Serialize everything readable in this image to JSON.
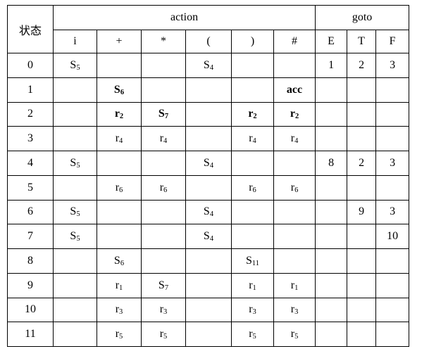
{
  "table": {
    "corner_header": "状态",
    "group_headers": {
      "action": "action",
      "goto": "goto"
    },
    "action_columns": [
      "i",
      "+",
      "*",
      "(",
      ")",
      "#"
    ],
    "goto_columns": [
      "E",
      "T",
      "F"
    ],
    "rows": [
      {
        "state": "0",
        "action": [
          "S_5",
          "",
          "",
          "S_4",
          "",
          ""
        ],
        "goto": [
          "1",
          "2",
          "3"
        ],
        "bold": false
      },
      {
        "state": "1",
        "action": [
          "",
          "S_6",
          "",
          "",
          "",
          "acc"
        ],
        "goto": [
          "",
          "",
          ""
        ],
        "bold": true
      },
      {
        "state": "2",
        "action": [
          "",
          "r_2",
          "S_7",
          "",
          "r_2",
          "r_2"
        ],
        "goto": [
          "",
          "",
          ""
        ],
        "bold": true
      },
      {
        "state": "3",
        "action": [
          "",
          "r_4",
          "r_4",
          "",
          "r_4",
          "r_4"
        ],
        "goto": [
          "",
          "",
          ""
        ],
        "bold": false
      },
      {
        "state": "4",
        "action": [
          "S_5",
          "",
          "",
          "S_4",
          "",
          ""
        ],
        "goto": [
          "8",
          "2",
          "3"
        ],
        "bold": false
      },
      {
        "state": "5",
        "action": [
          "",
          "r_6",
          "r_6",
          "",
          "r_6",
          "r_6"
        ],
        "goto": [
          "",
          "",
          ""
        ],
        "bold": false
      },
      {
        "state": "6",
        "action": [
          "S_5",
          "",
          "",
          "S_4",
          "",
          ""
        ],
        "goto": [
          "",
          "9",
          "3"
        ],
        "bold": false
      },
      {
        "state": "7",
        "action": [
          "S_5",
          "",
          "",
          "S_4",
          "",
          ""
        ],
        "goto": [
          "",
          "",
          "10"
        ],
        "bold": false
      },
      {
        "state": "8",
        "action": [
          "",
          "S_6",
          "",
          "",
          "S_11",
          ""
        ],
        "goto": [
          "",
          "",
          ""
        ],
        "bold": false
      },
      {
        "state": "9",
        "action": [
          "",
          "r_1",
          "S_7",
          "",
          "r_1",
          "r_1"
        ],
        "goto": [
          "",
          "",
          ""
        ],
        "bold": false
      },
      {
        "state": "10",
        "action": [
          "",
          "r_3",
          "r_3",
          "",
          "r_3",
          "r_3"
        ],
        "goto": [
          "",
          "",
          ""
        ],
        "bold": false
      },
      {
        "state": "11",
        "action": [
          "",
          "r_5",
          "r_5",
          "",
          "r_5",
          "r_5"
        ],
        "goto": [
          "",
          "",
          ""
        ],
        "bold": false
      }
    ]
  },
  "colors": {
    "border": "#000000",
    "text": "#000000",
    "background": "#ffffff"
  }
}
